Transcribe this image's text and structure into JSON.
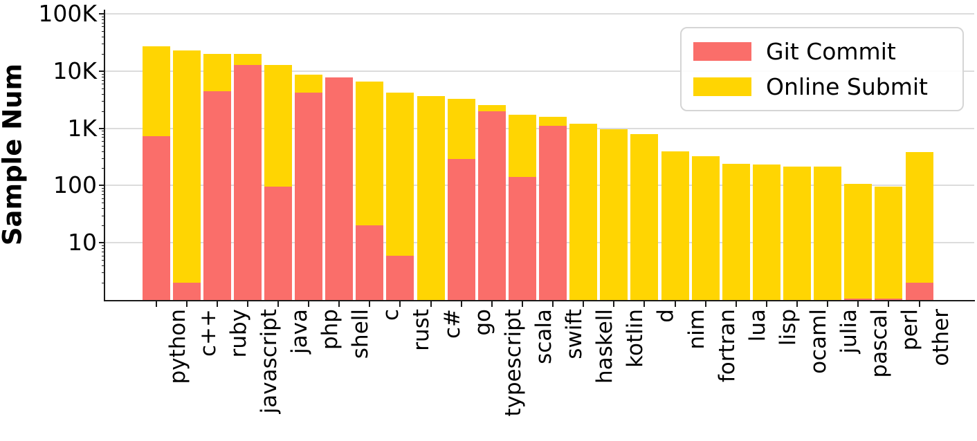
{
  "chart_data": {
    "type": "bar",
    "stacked": true,
    "yscale": "log",
    "title": "",
    "xlabel": "",
    "ylabel": "Sample Num",
    "ylim": [
      1,
      100000
    ],
    "grid": "horizontal",
    "legend_position": "upper right",
    "ytick_labels": [
      "10",
      "100",
      "1K",
      "10K",
      "100K"
    ],
    "ytick_values": [
      10,
      100,
      1000,
      10000,
      100000
    ],
    "categories": [
      "python",
      "c++",
      "ruby",
      "javascript",
      "java",
      "php",
      "shell",
      "c",
      "rust",
      "c#",
      "go",
      "typescript",
      "scala",
      "swift",
      "haskell",
      "kotlin",
      "d",
      "nim",
      "fortran",
      "lua",
      "lisp",
      "ocaml",
      "julia",
      "pascal",
      "perl",
      "other"
    ],
    "series": [
      {
        "name": "Git Commit",
        "color": "#fa6e6a",
        "values": [
          720,
          2,
          4400,
          12900,
          95,
          4250,
          7700,
          20,
          6,
          0,
          290,
          2000,
          143,
          1100,
          0,
          0,
          0,
          0,
          0,
          0,
          0,
          0,
          0,
          1,
          1,
          2
        ]
      },
      {
        "name": "Online Submit",
        "color": "#ffd502",
        "values": [
          26280,
          22998,
          15600,
          7100,
          12605,
          4450,
          0,
          6480,
          4194,
          3700,
          2960,
          570,
          1587,
          500,
          1210,
          960,
          800,
          400,
          325,
          242,
          230,
          215,
          212,
          105,
          94,
          383
        ]
      }
    ],
    "totals": [
      27000,
      23000,
      20000,
      20000,
      12700,
      8700,
      7700,
      6500,
      4200,
      3700,
      3250,
      2570,
      1730,
      1600,
      1210,
      960,
      800,
      400,
      325,
      242,
      230,
      215,
      212,
      106,
      95,
      385
    ]
  }
}
